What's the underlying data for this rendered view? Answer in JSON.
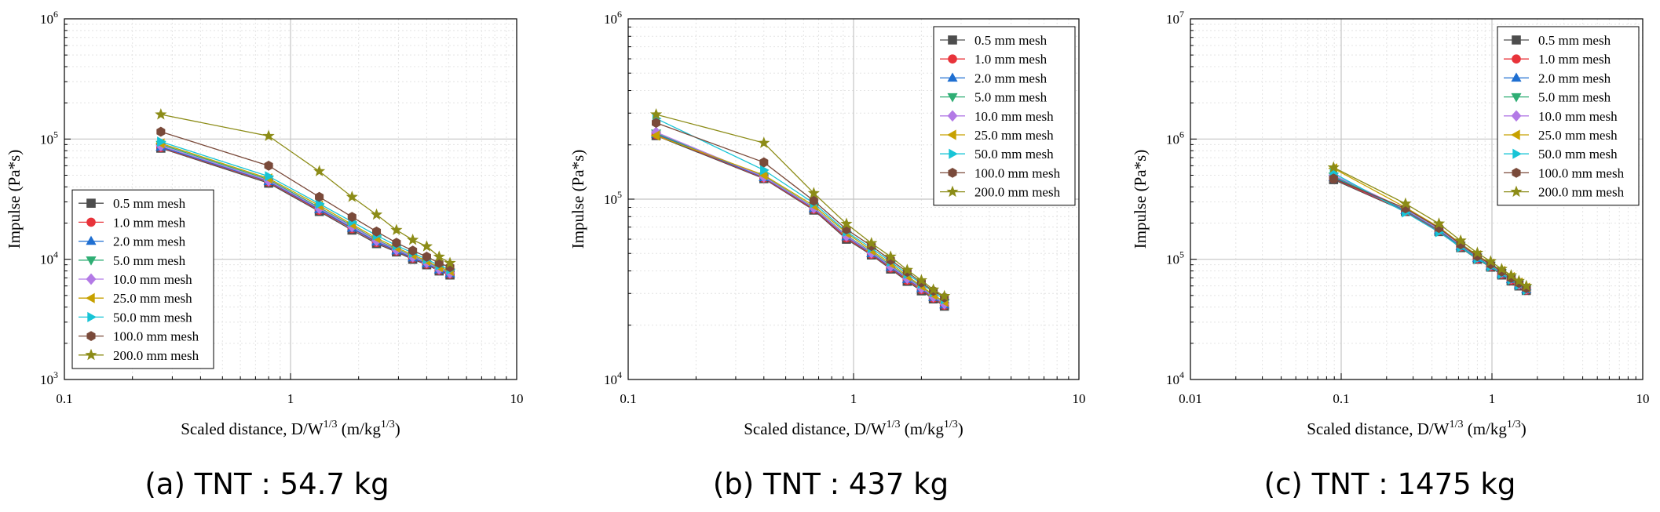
{
  "series_styles": [
    {
      "name": "0.5 mm mesh",
      "color": "#4d4d4d",
      "marker": "square"
    },
    {
      "name": "1.0 mm mesh",
      "color": "#e8333a",
      "marker": "circle"
    },
    {
      "name": "2.0 mm mesh",
      "color": "#1f6fd1",
      "marker": "triangle-up"
    },
    {
      "name": "5.0 mm mesh",
      "color": "#2fae74",
      "marker": "triangle-down"
    },
    {
      "name": "10.0 mm mesh",
      "color": "#b37ae6",
      "marker": "diamond"
    },
    {
      "name": "25.0 mm mesh",
      "color": "#c7a100",
      "marker": "triangle-left"
    },
    {
      "name": "50.0 mm mesh",
      "color": "#17c4d6",
      "marker": "triangle-right"
    },
    {
      "name": "100.0 mm mesh",
      "color": "#7a4a3a",
      "marker": "hexagon"
    },
    {
      "name": "200.0 mm mesh",
      "color": "#8c8c17",
      "marker": "star"
    }
  ],
  "chart_data": [
    {
      "type": "line",
      "caption": "(a) TNT : 54.7 kg",
      "xlabel": "Scaled distance, D/W1/3 (m/kg1/3)",
      "ylabel": "Impulse (Pa*s)",
      "x_scale": "log",
      "y_scale": "log",
      "xlim": [
        0.1,
        10
      ],
      "ylim": [
        1000,
        1000000
      ],
      "x_ticks": [
        "0.1",
        "1",
        "10"
      ],
      "y_ticks": [
        "10^3",
        "10^4",
        "10^5",
        "10^6"
      ],
      "legend_position": "bottom-left",
      "grid": true,
      "x": [
        0.267,
        0.8,
        1.34,
        1.87,
        2.4,
        2.94,
        3.47,
        4.0,
        4.54,
        5.07
      ],
      "series": [
        {
          "name": "0.5 mm mesh",
          "values": [
            84000,
            43000,
            25000,
            17500,
            13500,
            11500,
            10000,
            9000,
            8000,
            7400
          ]
        },
        {
          "name": "1.0 mm mesh",
          "values": [
            85000,
            44000,
            25500,
            18000,
            13800,
            11700,
            10200,
            9100,
            8100,
            7500
          ]
        },
        {
          "name": "2.0 mm mesh",
          "values": [
            86000,
            44500,
            26000,
            18200,
            14000,
            11800,
            10300,
            9200,
            8200,
            7600
          ]
        },
        {
          "name": "5.0 mm mesh",
          "values": [
            90000,
            46000,
            27000,
            19000,
            14500,
            12200,
            10600,
            9500,
            8400,
            7800
          ]
        },
        {
          "name": "10.0 mm mesh",
          "values": [
            88000,
            45000,
            26500,
            18700,
            14300,
            12000,
            10500,
            9400,
            8300,
            7700
          ]
        },
        {
          "name": "25.0 mm mesh",
          "values": [
            92000,
            47000,
            28000,
            19500,
            15000,
            12500,
            10900,
            9700,
            8600,
            8000
          ]
        },
        {
          "name": "50.0 mm mesh",
          "values": [
            95000,
            49000,
            29000,
            20500,
            15800,
            13000,
            11300,
            10000,
            8900,
            8200
          ]
        },
        {
          "name": "100.0 mm mesh",
          "values": [
            115000,
            60000,
            33000,
            22500,
            17000,
            13700,
            11800,
            10500,
            9300,
            8600
          ]
        },
        {
          "name": "200.0 mm mesh",
          "values": [
            160000,
            106000,
            54000,
            33000,
            23500,
            17500,
            14500,
            12800,
            10500,
            9300
          ]
        }
      ]
    },
    {
      "type": "line",
      "caption": "(b) TNT : 437 kg",
      "xlabel": "Scaled distance, D/W1/3 (m/kg1/3)",
      "ylabel": "Impulse (Pa*s)",
      "x_scale": "log",
      "y_scale": "log",
      "xlim": [
        0.1,
        10
      ],
      "ylim": [
        10000,
        1000000
      ],
      "x_ticks": [
        "0.1",
        "1",
        "10"
      ],
      "y_ticks": [
        "10^4",
        "10^5",
        "10^6"
      ],
      "legend_position": "top-right",
      "grid": true,
      "x": [
        0.133,
        0.4,
        0.666,
        0.93,
        1.2,
        1.46,
        1.73,
        2.0,
        2.26,
        2.53
      ],
      "series": [
        {
          "name": "0.5 mm mesh",
          "values": [
            225000,
            130000,
            87000,
            60000,
            49000,
            41000,
            35000,
            31000,
            28000,
            25500
          ]
        },
        {
          "name": "1.0 mm mesh",
          "values": [
            228000,
            131000,
            88000,
            61000,
            49500,
            41500,
            35500,
            31500,
            28300,
            25800
          ]
        },
        {
          "name": "2.0 mm mesh",
          "values": [
            230000,
            132000,
            89000,
            62000,
            50000,
            42000,
            36000,
            32000,
            28600,
            26000
          ]
        },
        {
          "name": "5.0 mm mesh",
          "values": [
            232000,
            134000,
            90000,
            63000,
            51000,
            43000,
            36800,
            32500,
            29000,
            26500
          ]
        },
        {
          "name": "10.0 mm mesh",
          "values": [
            235000,
            133000,
            89500,
            62500,
            50500,
            42500,
            36400,
            32200,
            28800,
            26300
          ]
        },
        {
          "name": "25.0 mm mesh",
          "values": [
            225000,
            136000,
            92000,
            65000,
            52000,
            44000,
            37500,
            33000,
            29500,
            27000
          ]
        },
        {
          "name": "50.0 mm mesh",
          "values": [
            280000,
            145000,
            95000,
            66000,
            53500,
            45000,
            38500,
            34000,
            30500,
            27800
          ]
        },
        {
          "name": "100.0 mm mesh",
          "values": [
            265000,
            160000,
            98000,
            68000,
            55000,
            46000,
            39500,
            34500,
            31000,
            28500
          ]
        },
        {
          "name": "200.0 mm mesh",
          "values": [
            295000,
            205000,
            108000,
            73000,
            57000,
            48000,
            40500,
            35500,
            31500,
            29000
          ]
        }
      ]
    },
    {
      "type": "line",
      "caption": "(c) TNT : 1475 kg",
      "xlabel": "Scaled distance, D/W1/3 (m/kg1/3)",
      "ylabel": "Impulse (Pa*s)",
      "x_scale": "log",
      "y_scale": "log",
      "xlim": [
        0.01,
        10
      ],
      "ylim": [
        10000,
        10000000
      ],
      "x_ticks": [
        "0.01",
        "0.1",
        "1",
        "10"
      ],
      "y_ticks": [
        "10^4",
        "10^5",
        "10^6",
        "10^7"
      ],
      "legend_position": "top-right",
      "grid": true,
      "x": [
        0.089,
        0.267,
        0.445,
        0.62,
        0.8,
        0.98,
        1.16,
        1.34,
        1.51,
        1.69
      ],
      "series": [
        {
          "name": "0.5 mm mesh",
          "values": [
            460000,
            250000,
            170000,
            125000,
            100000,
            86000,
            74000,
            66000,
            60000,
            55000
          ]
        },
        {
          "name": "1.0 mm mesh",
          "values": [
            470000,
            252000,
            172000,
            127000,
            101000,
            87000,
            75000,
            67000,
            61000,
            55500
          ]
        },
        {
          "name": "2.0 mm mesh",
          "values": [
            480000,
            255000,
            174000,
            128000,
            102000,
            88000,
            76000,
            68000,
            61500,
            56000
          ]
        },
        {
          "name": "5.0 mm mesh",
          "values": [
            490000,
            258000,
            176000,
            130000,
            104000,
            89000,
            77000,
            69000,
            62000,
            56500
          ]
        },
        {
          "name": "10.0 mm mesh",
          "values": [
            500000,
            260000,
            178000,
            131000,
            105000,
            90000,
            78000,
            69500,
            62500,
            57000
          ]
        },
        {
          "name": "25.0 mm mesh",
          "values": [
            570000,
            270000,
            185000,
            135000,
            108000,
            92000,
            80000,
            71000,
            64000,
            58000
          ]
        },
        {
          "name": "50.0 mm mesh",
          "values": [
            520000,
            245000,
            168000,
            126000,
            101000,
            87000,
            75500,
            67500,
            61000,
            55500
          ]
        },
        {
          "name": "100.0 mm mesh",
          "values": [
            470000,
            265000,
            182000,
            133000,
            106000,
            91000,
            79000,
            70000,
            63500,
            57500
          ]
        },
        {
          "name": "200.0 mm mesh",
          "values": [
            580000,
            290000,
            198000,
            143000,
            113000,
            96000,
            83000,
            73500,
            66000,
            60000
          ]
        }
      ]
    }
  ]
}
